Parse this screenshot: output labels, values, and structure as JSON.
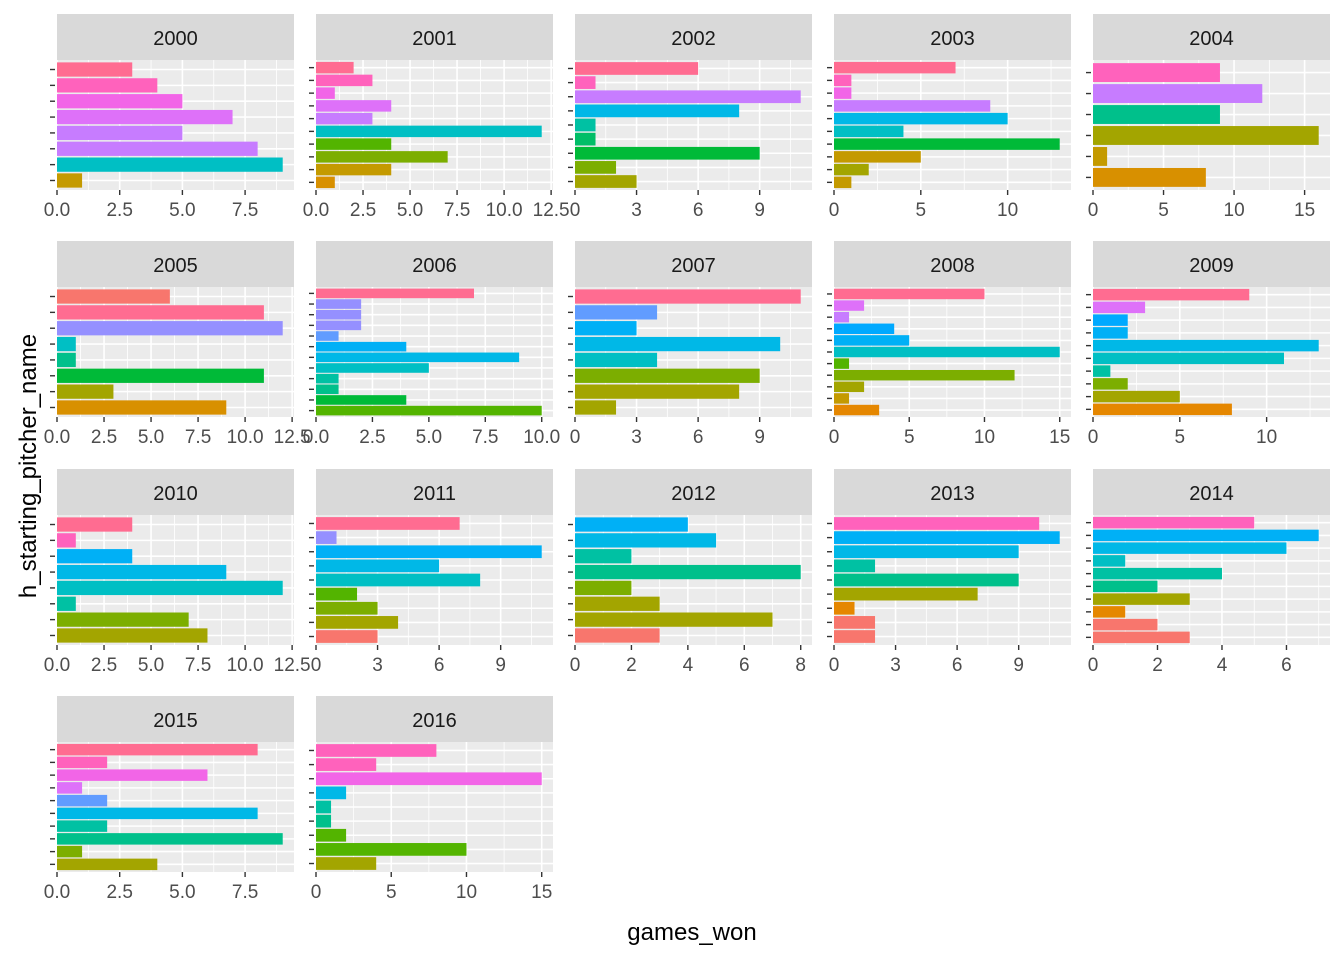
{
  "chart_data": {
    "type": "bar",
    "orientation": "horizontal",
    "xlabel": "games_won",
    "ylabel": "h_starting_pitcher_name",
    "facet_by": "year",
    "grid": true,
    "legend": "none",
    "panels": [
      {
        "label": "2000",
        "xlim": [
          0,
          9.45
        ],
        "ticks": [
          0,
          2.5,
          5,
          7.5
        ],
        "tick_labels": [
          "0.0",
          "2.5",
          "5.0",
          "7.5"
        ],
        "values": [
          3,
          4,
          5,
          7,
          5,
          8,
          9,
          1
        ],
        "colors": [
          "#FF6C91",
          "#FF62BC",
          "#F265E7",
          "#DE71F9",
          "#C77CFF",
          "#C77CFF",
          "#00BFC4",
          "#C49A00"
        ]
      },
      {
        "label": "2001",
        "xlim": [
          0,
          12.6
        ],
        "ticks": [
          0,
          2.5,
          5,
          7.5,
          10,
          12.5
        ],
        "tick_labels": [
          "0.0",
          "2.5",
          "5.0",
          "7.5",
          "10.0",
          "12.5"
        ],
        "values": [
          2,
          3,
          1,
          4,
          3,
          12,
          4,
          7,
          4,
          1
        ],
        "colors": [
          "#FF6C91",
          "#FF62BC",
          "#F265E7",
          "#DE71F9",
          "#C77CFF",
          "#00BFC4",
          "#53B400",
          "#7CAE00",
          "#C49A00",
          "#D89000"
        ]
      },
      {
        "label": "2002",
        "xlim": [
          0,
          11.55
        ],
        "ticks": [
          0,
          3,
          6,
          9
        ],
        "tick_labels": [
          "0",
          "3",
          "6",
          "9"
        ],
        "values": [
          6,
          1,
          11,
          8,
          1,
          1,
          9,
          2,
          3
        ],
        "colors": [
          "#FF6C91",
          "#FF62BC",
          "#C77CFF",
          "#00B8E7",
          "#00C1A3",
          "#00BE67",
          "#00BA38",
          "#7CAE00",
          "#A3A500"
        ]
      },
      {
        "label": "2003",
        "xlim": [
          0,
          13.65
        ],
        "ticks": [
          0,
          5,
          10
        ],
        "tick_labels": [
          "0",
          "5",
          "10"
        ],
        "values": [
          7,
          1,
          1,
          9,
          10,
          4,
          13,
          5,
          2,
          1
        ],
        "colors": [
          "#FF6C91",
          "#FF62BC",
          "#F265E7",
          "#C77CFF",
          "#00B8E7",
          "#00BFC4",
          "#00BA38",
          "#C49A00",
          "#A3A500",
          "#C49A00"
        ]
      },
      {
        "label": "2004",
        "xlim": [
          0,
          16.8
        ],
        "ticks": [
          0,
          5,
          10,
          15
        ],
        "tick_labels": [
          "0",
          "5",
          "10",
          "15"
        ],
        "values": [
          9,
          12,
          9,
          16,
          1,
          8
        ],
        "colors": [
          "#FF62BC",
          "#C77CFF",
          "#00C08B",
          "#A3A500",
          "#C49A00",
          "#D89000"
        ]
      },
      {
        "label": "2005",
        "xlim": [
          0,
          12.6
        ],
        "ticks": [
          0,
          2.5,
          5,
          7.5,
          10,
          12.5
        ],
        "tick_labels": [
          "0.0",
          "2.5",
          "5.0",
          "7.5",
          "10.0",
          "12.5"
        ],
        "values": [
          6,
          11,
          12,
          1,
          1,
          11,
          3,
          9
        ],
        "colors": [
          "#F8766D",
          "#FF6C91",
          "#9590FF",
          "#00BFC4",
          "#00C08B",
          "#00BA38",
          "#A3A500",
          "#D89000"
        ]
      },
      {
        "label": "2006",
        "xlim": [
          0,
          10.5
        ],
        "ticks": [
          0,
          2.5,
          5,
          7.5,
          10
        ],
        "tick_labels": [
          "0.0",
          "2.5",
          "5.0",
          "7.5",
          "10.0"
        ],
        "values": [
          7,
          2,
          2,
          2,
          1,
          4,
          9,
          5,
          1,
          1,
          4,
          10
        ],
        "colors": [
          "#FF6C91",
          "#9590FF",
          "#9590FF",
          "#9590FF",
          "#619CFF",
          "#00B0F6",
          "#00B8E7",
          "#00BFC4",
          "#00C1A3",
          "#00C08B",
          "#00BA38",
          "#53B400"
        ]
      },
      {
        "label": "2007",
        "xlim": [
          0,
          11.55
        ],
        "ticks": [
          0,
          3,
          6,
          9
        ],
        "tick_labels": [
          "0",
          "3",
          "6",
          "9"
        ],
        "values": [
          11,
          4,
          3,
          10,
          4,
          9,
          8,
          2
        ],
        "colors": [
          "#FF6C91",
          "#619CFF",
          "#00B0F6",
          "#00B8E7",
          "#00BFC4",
          "#7CAE00",
          "#A3A500",
          "#A3A500"
        ]
      },
      {
        "label": "2008",
        "xlim": [
          0,
          15.75
        ],
        "ticks": [
          0,
          5,
          10,
          15
        ],
        "tick_labels": [
          "0",
          "5",
          "10",
          "15"
        ],
        "values": [
          10,
          2,
          1,
          4,
          5,
          15,
          1,
          12,
          2,
          1,
          3
        ],
        "colors": [
          "#FF6C91",
          "#DE71F9",
          "#C77CFF",
          "#00A9FF",
          "#00B0F6",
          "#00BFC4",
          "#53B400",
          "#7CAE00",
          "#A3A500",
          "#C49A00",
          "#E58700"
        ]
      },
      {
        "label": "2009",
        "xlim": [
          0,
          13.65
        ],
        "ticks": [
          0,
          5,
          10
        ],
        "tick_labels": [
          "0",
          "5",
          "10"
        ],
        "values": [
          9,
          3,
          2,
          2,
          13,
          11,
          1,
          2,
          5,
          8
        ],
        "colors": [
          "#FF6C91",
          "#DE71F9",
          "#00A9FF",
          "#00B0F6",
          "#00B8E7",
          "#00BFC4",
          "#00C1A3",
          "#7CAE00",
          "#A3A500",
          "#E58700"
        ]
      },
      {
        "label": "2010",
        "xlim": [
          0,
          12.6
        ],
        "ticks": [
          0,
          2.5,
          5,
          7.5,
          10,
          12.5
        ],
        "tick_labels": [
          "0.0",
          "2.5",
          "5.0",
          "7.5",
          "10.0",
          "12.5"
        ],
        "values": [
          4,
          1,
          4,
          9,
          12,
          1,
          7,
          8
        ],
        "colors": [
          "#FF6C91",
          "#FF62BC",
          "#00B0F6",
          "#00B8E7",
          "#00BFC4",
          "#00C1A3",
          "#7CAE00",
          "#A3A500"
        ]
      },
      {
        "label": "2011",
        "xlim": [
          0,
          11.55
        ],
        "ticks": [
          0,
          3,
          6,
          9
        ],
        "tick_labels": [
          "0",
          "3",
          "6",
          "9"
        ],
        "values": [
          7,
          1,
          11,
          6,
          8,
          2,
          3,
          4,
          3
        ],
        "colors": [
          "#FF6C91",
          "#9590FF",
          "#00B0F6",
          "#00B8E7",
          "#00BFC4",
          "#53B400",
          "#7CAE00",
          "#A3A500",
          "#F8766D"
        ]
      },
      {
        "label": "2012",
        "xlim": [
          0,
          8.4
        ],
        "ticks": [
          0,
          2,
          4,
          6,
          8
        ],
        "tick_labels": [
          "0",
          "2",
          "4",
          "6",
          "8"
        ],
        "values": [
          4,
          5,
          2,
          8,
          2,
          3,
          7,
          3
        ],
        "colors": [
          "#00B0F6",
          "#00B8E7",
          "#00C1A3",
          "#00C08B",
          "#7CAE00",
          "#A3A500",
          "#A3A500",
          "#F8766D"
        ]
      },
      {
        "label": "2013",
        "xlim": [
          0,
          11.55
        ],
        "ticks": [
          0,
          3,
          6,
          9
        ],
        "tick_labels": [
          "0",
          "3",
          "6",
          "9"
        ],
        "values": [
          10,
          11,
          9,
          2,
          9,
          7,
          1,
          2,
          2
        ],
        "colors": [
          "#FF62BC",
          "#00B0F6",
          "#00B8E7",
          "#00C1A3",
          "#00C08B",
          "#A3A500",
          "#E58700",
          "#F8766D",
          "#F8766D"
        ]
      },
      {
        "label": "2014",
        "xlim": [
          0,
          7.35
        ],
        "ticks": [
          0,
          2,
          4,
          6
        ],
        "tick_labels": [
          "0",
          "2",
          "4",
          "6"
        ],
        "values": [
          5,
          7,
          6,
          1,
          4,
          2,
          3,
          1,
          2,
          3
        ],
        "colors": [
          "#FF62BC",
          "#00B0F6",
          "#00B8E7",
          "#00BFC4",
          "#00C1A3",
          "#00C08B",
          "#A3A500",
          "#E58700",
          "#F8766D",
          "#F8766D"
        ]
      },
      {
        "label": "2015",
        "xlim": [
          0,
          9.45
        ],
        "ticks": [
          0,
          2.5,
          5,
          7.5
        ],
        "tick_labels": [
          "0.0",
          "2.5",
          "5.0",
          "7.5"
        ],
        "values": [
          8,
          2,
          6,
          1,
          2,
          8,
          2,
          9,
          1,
          4
        ],
        "colors": [
          "#FF6C91",
          "#FF62BC",
          "#F265E7",
          "#DE71F9",
          "#619CFF",
          "#00B8E7",
          "#00C1A3",
          "#00C08B",
          "#7CAE00",
          "#A3A500"
        ]
      },
      {
        "label": "2016",
        "xlim": [
          0,
          15.75
        ],
        "ticks": [
          0,
          5,
          10,
          15
        ],
        "tick_labels": [
          "0",
          "5",
          "10",
          "15"
        ],
        "values": [
          8,
          4,
          15,
          2,
          1,
          1,
          2,
          10,
          4
        ],
        "colors": [
          "#FF62BC",
          "#FF62BC",
          "#F265E7",
          "#00B8E7",
          "#00C1A3",
          "#00C08B",
          "#53B400",
          "#53B400",
          "#A3A500"
        ]
      }
    ]
  }
}
